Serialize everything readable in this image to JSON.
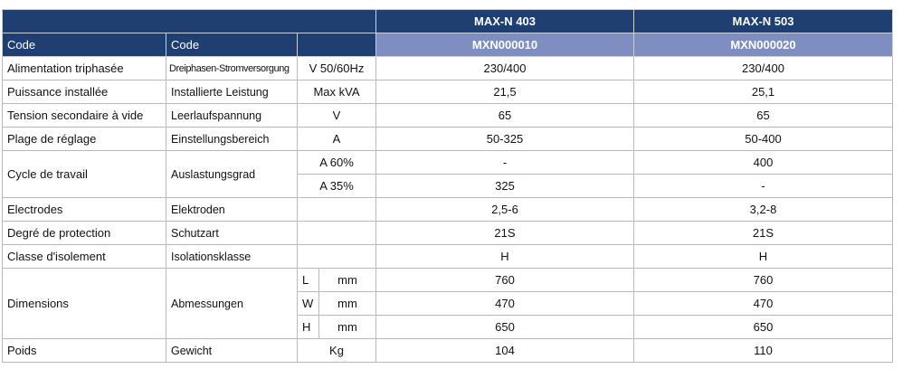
{
  "header": {
    "models": [
      "MAX-N 403",
      "MAX-N 503"
    ],
    "code_fr": "Code",
    "code_de": "Code",
    "codes": [
      "MXN000010",
      "MXN000020"
    ]
  },
  "rows": [
    {
      "fr": "Alimentation triphasée",
      "de": "Dreiphasen-Stromversorgung",
      "sub": [
        {
          "unit": "V 50/60Hz",
          "values": [
            "230/400",
            "230/400"
          ]
        }
      ]
    },
    {
      "fr": "Puissance installée",
      "de": "Installierte Leistung",
      "sub": [
        {
          "unit": "Max kVA",
          "values": [
            "21,5",
            "25,1"
          ]
        }
      ]
    },
    {
      "fr": "Tension secondaire à vide",
      "de": "Leerlaufspannung",
      "sub": [
        {
          "unit": "V",
          "values": [
            "65",
            "65"
          ]
        }
      ]
    },
    {
      "fr": "Plage de réglage",
      "de": "Einstellungsbereich",
      "sub": [
        {
          "unit": "A",
          "values": [
            "50-325",
            "50-400"
          ]
        }
      ]
    },
    {
      "fr": "Cycle de travail",
      "de": "Auslastungsgrad",
      "sub": [
        {
          "unit": "A 60%",
          "values": [
            "-",
            "400"
          ]
        },
        {
          "unit": "A 35%",
          "values": [
            "325",
            "-"
          ]
        }
      ]
    },
    {
      "fr": "Electrodes",
      "de": "Elektroden",
      "sub": [
        {
          "values": [
            "2,5-6",
            "3,2-8"
          ]
        }
      ]
    },
    {
      "fr": "Degré de protection",
      "de": "Schutzart",
      "sub": [
        {
          "values": [
            "21S",
            "21S"
          ]
        }
      ]
    },
    {
      "fr": "Classe d'isolement",
      "de": "Isolationsklasse",
      "sub": [
        {
          "values": [
            "H",
            "H"
          ]
        }
      ]
    },
    {
      "fr": "Dimensions",
      "de": "Abmessungen",
      "sub": [
        {
          "dim": "L",
          "unit": "mm",
          "values": [
            "760",
            "760"
          ]
        },
        {
          "dim": "W",
          "unit": "mm",
          "values": [
            "470",
            "470"
          ]
        },
        {
          "dim": "H",
          "unit": "mm",
          "values": [
            "650",
            "650"
          ]
        }
      ]
    },
    {
      "fr": "Poids",
      "de": "Gewicht",
      "sub": [
        {
          "unit": "Kg",
          "values": [
            "104",
            "110"
          ]
        }
      ]
    }
  ]
}
